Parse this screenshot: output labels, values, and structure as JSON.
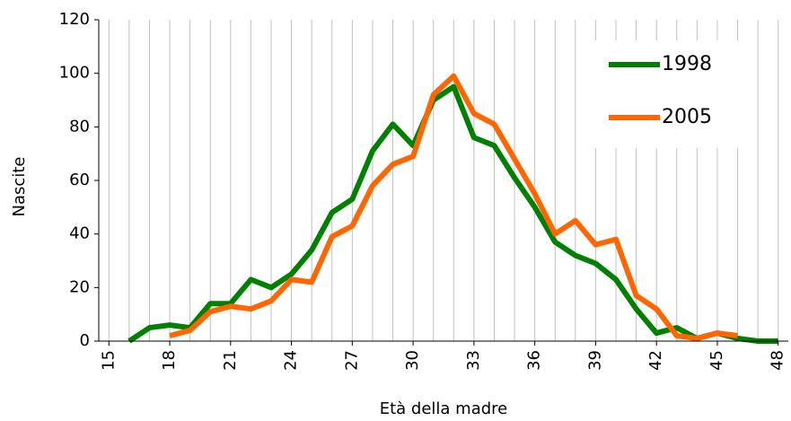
{
  "chart_data": {
    "type": "line",
    "x_label": "Età della madre",
    "y_label": "Nascite",
    "x": [
      15,
      16,
      17,
      18,
      19,
      20,
      21,
      22,
      23,
      24,
      25,
      26,
      27,
      28,
      29,
      30,
      31,
      32,
      33,
      34,
      35,
      36,
      37,
      38,
      39,
      40,
      41,
      42,
      43,
      44,
      45,
      46,
      47,
      48
    ],
    "series": [
      {
        "name": "1998",
        "color": "#008000",
        "values": [
          null,
          0,
          5,
          6,
          5,
          14,
          14,
          23,
          20,
          25,
          34,
          48,
          53,
          71,
          81,
          73,
          90,
          95,
          76,
          73,
          61,
          50,
          37,
          32,
          29,
          23,
          12,
          3,
          5,
          1,
          3,
          1,
          0,
          0
        ]
      },
      {
        "name": "2005",
        "color": "#ff6600",
        "values": [
          null,
          null,
          null,
          2,
          4,
          11,
          13,
          12,
          15,
          23,
          22,
          39,
          43,
          58,
          66,
          69,
          92,
          99,
          85,
          81,
          68,
          55,
          40,
          45,
          36,
          38,
          17,
          12,
          2,
          1,
          3,
          2,
          null,
          null
        ]
      }
    ],
    "xlim": [
      14.5,
      48.5
    ],
    "xticks": [
      15,
      18,
      21,
      24,
      27,
      30,
      33,
      36,
      39,
      42,
      45,
      48
    ],
    "ylim": [
      0,
      120
    ],
    "yticks": [
      0,
      20,
      40,
      60,
      80,
      100,
      120
    ],
    "grid": true,
    "legend": "upper right"
  }
}
